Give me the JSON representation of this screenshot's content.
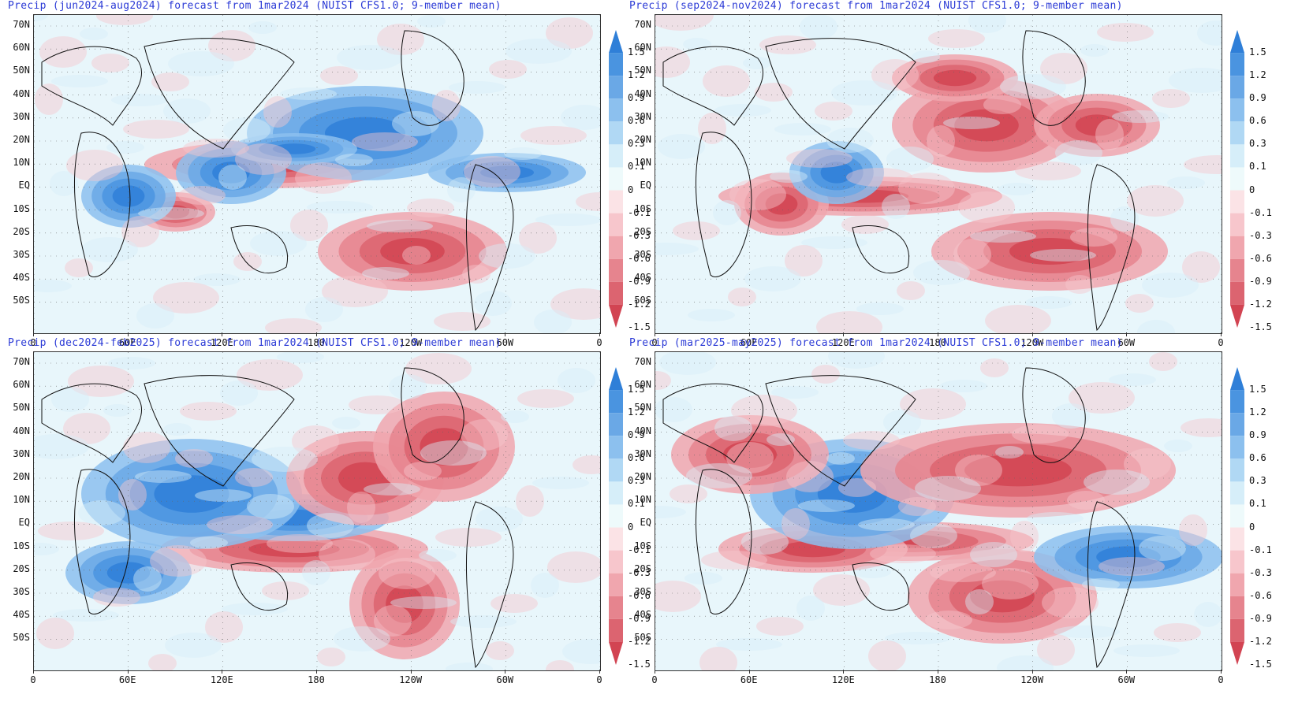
{
  "panels": [
    {
      "title": "Precip (jun2024-aug2024) forecast from 1mar2024 (NUIST CFS1.0; 9-member mean)"
    },
    {
      "title": "Precip (sep2024-nov2024) forecast from 1mar2024 (NUIST CFS1.0; 9-member mean)"
    },
    {
      "title": "Precip (dec2024-feb2025) forecast from 1mar2024 (NUIST CFS1.0; 9-member mean)"
    },
    {
      "title": "Precip (mar2025-may2025) forecast from 1mar2024 (NUIST CFS1.0; 9-member mean)"
    }
  ],
  "lat_labels": [
    "70N",
    "60N",
    "50N",
    "40N",
    "30N",
    "20N",
    "10N",
    "EQ",
    "10S",
    "20S",
    "30S",
    "40S",
    "50S"
  ],
  "lon_labels": [
    "0",
    "60E",
    "120E",
    "180",
    "120W",
    "60W",
    "0"
  ],
  "colorbar": {
    "labels": [
      "1.5",
      "1.2",
      "0.9",
      "0.6",
      "0.3",
      "0.1",
      "0",
      "-0.1",
      "-0.3",
      "-0.6",
      "-0.9",
      "-1.2",
      "-1.5"
    ],
    "colors": [
      "#2f7fd8",
      "#4a94e0",
      "#6aa8e6",
      "#8cc0ee",
      "#b0d8f4",
      "#d6eef9",
      "#eefafb",
      "#fbe3e6",
      "#f7c6cc",
      "#f0a6ae",
      "#e6848e",
      "#dc6470",
      "#d24452"
    ]
  },
  "colors": {
    "title": "#2b3ad6",
    "positive": "#2f7fd8",
    "negative": "#d24452",
    "background": "#e8f6fb"
  }
}
